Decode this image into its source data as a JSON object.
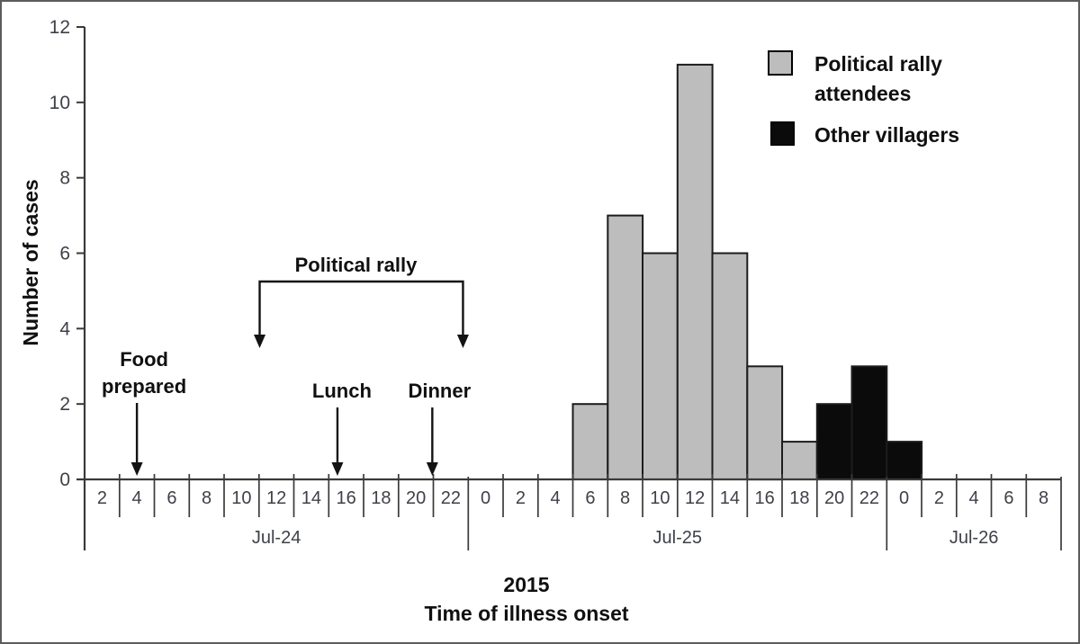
{
  "figure": {
    "background": "#ffffff",
    "frame_color": "#5c5c5c",
    "axis_color": "#3a3a3a"
  },
  "chart_data": {
    "type": "bar",
    "title": "",
    "xlabel_year": "2015",
    "xlabel_title": "Time of illness onset",
    "ylabel": "Number of cases",
    "ylim": [
      0,
      12
    ],
    "ytick_interval": 2,
    "yticks": [
      0,
      2,
      4,
      6,
      8,
      10,
      12
    ],
    "grid": "off",
    "legend_position": "upper-right",
    "days": [
      {
        "label": "Jul-24",
        "hours": [
          "2",
          "4",
          "6",
          "8",
          "10",
          "12",
          "14",
          "16",
          "18",
          "20",
          "22"
        ]
      },
      {
        "label": "Jul-25",
        "hours": [
          "0",
          "2",
          "4",
          "6",
          "8",
          "10",
          "12",
          "14",
          "16",
          "18",
          "20",
          "22"
        ]
      },
      {
        "label": "Jul-26",
        "hours": [
          "0",
          "2",
          "4",
          "6",
          "8"
        ]
      }
    ],
    "series": [
      {
        "name": "Political rally attendees",
        "color": "#bdbdbd",
        "bars": [
          {
            "day": "Jul-25",
            "hour": "6",
            "value": 2
          },
          {
            "day": "Jul-25",
            "hour": "8",
            "value": 7
          },
          {
            "day": "Jul-25",
            "hour": "10",
            "value": 6
          },
          {
            "day": "Jul-25",
            "hour": "12",
            "value": 11
          },
          {
            "day": "Jul-25",
            "hour": "14",
            "value": 6
          },
          {
            "day": "Jul-25",
            "hour": "16",
            "value": 3
          },
          {
            "day": "Jul-25",
            "hour": "18",
            "value": 1
          }
        ]
      },
      {
        "name": "Other villagers",
        "color": "#0b0b0b",
        "bars": [
          {
            "day": "Jul-25",
            "hour": "20",
            "value": 2
          },
          {
            "day": "Jul-25",
            "hour": "22",
            "value": 3
          },
          {
            "day": "Jul-26",
            "hour": "0",
            "value": 1
          }
        ]
      }
    ],
    "legend_items": [
      {
        "lines": [
          "Political rally",
          "attendees"
        ],
        "color": "#bdbdbd"
      },
      {
        "lines": [
          "Other villagers"
        ],
        "color": "#0b0b0b"
      }
    ],
    "annotations": [
      {
        "id": "food-prepared",
        "lines": [
          "Food",
          "prepared"
        ],
        "x_cells": 1.5
      },
      {
        "id": "political-rally",
        "lines": [
          "Political rally"
        ],
        "x_cells_from": 5.02,
        "x_cells_to": 10.85
      },
      {
        "id": "lunch",
        "lines": [
          "Lunch"
        ],
        "x_cells": 7.25
      },
      {
        "id": "dinner",
        "lines": [
          "Dinner"
        ],
        "x_cells": 9.97
      }
    ]
  }
}
